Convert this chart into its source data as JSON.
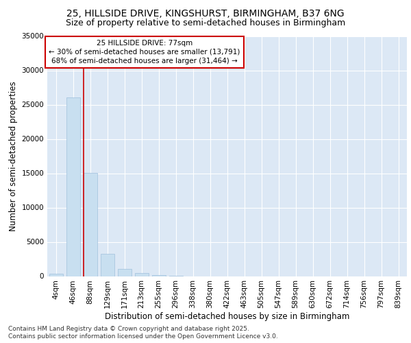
{
  "title_line1": "25, HILLSIDE DRIVE, KINGSHURST, BIRMINGHAM, B37 6NG",
  "title_line2": "Size of property relative to semi-detached houses in Birmingham",
  "xlabel": "Distribution of semi-detached houses by size in Birmingham",
  "ylabel": "Number of semi-detached properties",
  "categories": [
    "4sqm",
    "46sqm",
    "88sqm",
    "129sqm",
    "171sqm",
    "213sqm",
    "255sqm",
    "296sqm",
    "338sqm",
    "380sqm",
    "422sqm",
    "463sqm",
    "505sqm",
    "547sqm",
    "589sqm",
    "630sqm",
    "672sqm",
    "714sqm",
    "756sqm",
    "797sqm",
    "839sqm"
  ],
  "values": [
    350,
    26100,
    15100,
    3300,
    1050,
    480,
    160,
    50,
    0,
    0,
    0,
    0,
    0,
    0,
    0,
    0,
    0,
    0,
    0,
    0,
    0
  ],
  "bar_color": "#c8dff0",
  "bar_edge_color": "#a0c0dc",
  "vline_x_index": 2,
  "vline_color": "#cc0000",
  "annotation_text": "25 HILLSIDE DRIVE: 77sqm\n← 30% of semi-detached houses are smaller (13,791)\n68% of semi-detached houses are larger (31,464) →",
  "annotation_box_color": "#ffffff",
  "annotation_box_edge": "#cc0000",
  "footer_line1": "Contains HM Land Registry data © Crown copyright and database right 2025.",
  "footer_line2": "Contains public sector information licensed under the Open Government Licence v3.0.",
  "fig_background_color": "#ffffff",
  "plot_bg_color": "#dce8f5",
  "grid_color": "#ffffff",
  "ylim": [
    0,
    35000
  ],
  "yticks": [
    0,
    5000,
    10000,
    15000,
    20000,
    25000,
    30000,
    35000
  ],
  "title_fontsize": 10,
  "subtitle_fontsize": 9,
  "axis_label_fontsize": 8.5,
  "tick_fontsize": 7.5,
  "annotation_fontsize": 7.5,
  "footer_fontsize": 6.5
}
